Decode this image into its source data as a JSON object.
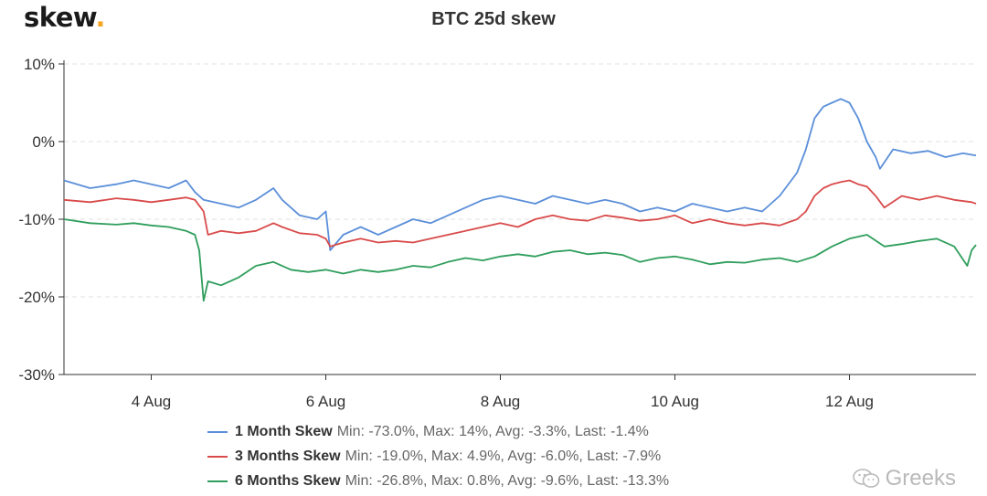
{
  "brand": {
    "logo_text": "skew",
    "logo_dot": ".",
    "watermark": "Greeks"
  },
  "colors": {
    "one_month": "#5b8fd9",
    "three_months": "#d94a4a",
    "six_months": "#2f9e5c",
    "accent": "#f5a623"
  },
  "legend": [
    {
      "name": "1 Month Skew",
      "stats": "Min: -73.0%, Max: 14%, Avg: -3.3%, Last: -1.4%"
    },
    {
      "name": "3 Months Skew",
      "stats": "Min: -19.0%, Max: 4.9%, Avg: -6.0%, Last: -7.9%"
    },
    {
      "name": "6 Months Skew",
      "stats": "Min: -26.8%, Max: 0.8%, Avg: -9.6%, Last: -13.3%"
    }
  ],
  "chart_data": {
    "type": "line",
    "title": "BTC 25d skew",
    "xlabel": "",
    "ylabel": "",
    "xlim": [
      3,
      13.45
    ],
    "ylim": [
      -30,
      10
    ],
    "x_ticks": [
      {
        "x": 4,
        "label": "4 Aug"
      },
      {
        "x": 6,
        "label": "6 Aug"
      },
      {
        "x": 8,
        "label": "8 Aug"
      },
      {
        "x": 10,
        "label": "10 Aug"
      },
      {
        "x": 12,
        "label": "12 Aug"
      }
    ],
    "y_ticks": [
      {
        "y": 10,
        "label": "10%"
      },
      {
        "y": 0,
        "label": "0%"
      },
      {
        "y": -10,
        "label": "-10%"
      },
      {
        "y": -20,
        "label": "-20%"
      },
      {
        "y": -30,
        "label": "-30%"
      }
    ],
    "grid": true,
    "legend_position": "bottom",
    "series": [
      {
        "name": "1 Month Skew",
        "color": "#5b8fd9",
        "x": [
          3.0,
          3.3,
          3.6,
          3.8,
          4.0,
          4.2,
          4.4,
          4.5,
          4.6,
          4.8,
          5.0,
          5.2,
          5.4,
          5.5,
          5.7,
          5.9,
          6.0,
          6.05,
          6.2,
          6.4,
          6.6,
          6.8,
          7.0,
          7.2,
          7.4,
          7.6,
          7.8,
          8.0,
          8.2,
          8.4,
          8.6,
          8.8,
          9.0,
          9.2,
          9.4,
          9.6,
          9.8,
          10.0,
          10.2,
          10.4,
          10.6,
          10.8,
          11.0,
          11.2,
          11.4,
          11.5,
          11.6,
          11.7,
          11.8,
          11.9,
          12.0,
          12.1,
          12.2,
          12.3,
          12.35,
          12.5,
          12.7,
          12.9,
          13.1,
          13.3,
          13.45
        ],
        "y": [
          -5,
          -6,
          -5.5,
          -5,
          -5.5,
          -6,
          -5,
          -6.5,
          -7.5,
          -8,
          -8.5,
          -7.5,
          -6,
          -7.5,
          -9.5,
          -10,
          -9,
          -14,
          -12,
          -11,
          -12,
          -11,
          -10,
          -10.5,
          -9.5,
          -8.5,
          -7.5,
          -7,
          -7.5,
          -8,
          -7,
          -7.5,
          -8,
          -7.5,
          -8,
          -9,
          -8.5,
          -9,
          -8,
          -8.5,
          -9,
          -8.5,
          -9,
          -7,
          -4,
          -1,
          3,
          4.5,
          5,
          5.5,
          5,
          3,
          0,
          -2,
          -3.5,
          -1,
          -1.5,
          -1.2,
          -2,
          -1.5,
          -1.8
        ]
      },
      {
        "name": "3 Months Skew",
        "color": "#d94a4a",
        "x": [
          3.0,
          3.3,
          3.6,
          3.8,
          4.0,
          4.2,
          4.4,
          4.5,
          4.6,
          4.65,
          4.8,
          5.0,
          5.2,
          5.4,
          5.5,
          5.7,
          5.9,
          6.0,
          6.05,
          6.2,
          6.4,
          6.6,
          6.8,
          7.0,
          7.2,
          7.4,
          7.6,
          7.8,
          8.0,
          8.2,
          8.4,
          8.6,
          8.8,
          9.0,
          9.2,
          9.4,
          9.6,
          9.8,
          10.0,
          10.2,
          10.4,
          10.6,
          10.8,
          11.0,
          11.2,
          11.4,
          11.5,
          11.6,
          11.7,
          11.8,
          11.9,
          12.0,
          12.1,
          12.2,
          12.3,
          12.4,
          12.6,
          12.8,
          13.0,
          13.2,
          13.4,
          13.45
        ],
        "y": [
          -7.5,
          -7.8,
          -7.3,
          -7.5,
          -7.8,
          -7.5,
          -7.2,
          -7.5,
          -9,
          -12,
          -11.5,
          -11.8,
          -11.5,
          -10.5,
          -11,
          -11.8,
          -12,
          -12.5,
          -13.5,
          -13,
          -12.5,
          -13,
          -12.8,
          -13,
          -12.5,
          -12,
          -11.5,
          -11,
          -10.5,
          -11,
          -10,
          -9.5,
          -10,
          -10.2,
          -9.5,
          -9.8,
          -10.2,
          -10,
          -9.5,
          -10.5,
          -10,
          -10.5,
          -10.8,
          -10.5,
          -10.8,
          -10,
          -9,
          -7,
          -6,
          -5.5,
          -5.2,
          -5,
          -5.5,
          -5.8,
          -7,
          -8.5,
          -7,
          -7.5,
          -7,
          -7.5,
          -7.8,
          -8
        ]
      },
      {
        "name": "6 Months Skew",
        "color": "#2f9e5c",
        "x": [
          3.0,
          3.3,
          3.6,
          3.8,
          4.0,
          4.2,
          4.4,
          4.5,
          4.55,
          4.6,
          4.65,
          4.8,
          5.0,
          5.2,
          5.4,
          5.6,
          5.8,
          6.0,
          6.2,
          6.4,
          6.6,
          6.8,
          7.0,
          7.2,
          7.4,
          7.6,
          7.8,
          8.0,
          8.2,
          8.4,
          8.6,
          8.8,
          9.0,
          9.2,
          9.4,
          9.6,
          9.8,
          10.0,
          10.2,
          10.4,
          10.6,
          10.8,
          11.0,
          11.2,
          11.4,
          11.6,
          11.8,
          12.0,
          12.2,
          12.4,
          12.6,
          12.8,
          13.0,
          13.2,
          13.35,
          13.4,
          13.45
        ],
        "y": [
          -10,
          -10.5,
          -10.7,
          -10.5,
          -10.8,
          -11,
          -11.5,
          -12,
          -14,
          -20.5,
          -18,
          -18.5,
          -17.5,
          -16,
          -15.5,
          -16.5,
          -16.8,
          -16.5,
          -17,
          -16.5,
          -16.8,
          -16.5,
          -16,
          -16.2,
          -15.5,
          -15,
          -15.3,
          -14.8,
          -14.5,
          -14.8,
          -14.2,
          -14,
          -14.5,
          -14.3,
          -14.6,
          -15.5,
          -15,
          -14.8,
          -15.2,
          -15.8,
          -15.5,
          -15.6,
          -15.2,
          -15,
          -15.5,
          -14.8,
          -13.5,
          -12.5,
          -12,
          -13.5,
          -13.2,
          -12.8,
          -12.5,
          -13.5,
          -16,
          -14,
          -13.3
        ]
      }
    ]
  }
}
